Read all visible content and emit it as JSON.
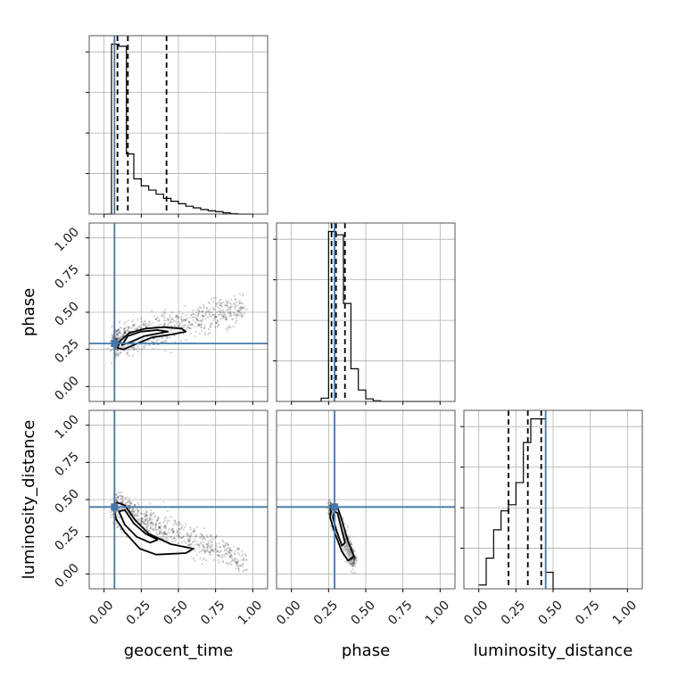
{
  "chart_data": {
    "type": "corner",
    "parameters": [
      "geocent_time",
      "phase",
      "luminosity_distance"
    ],
    "axis_range": [
      -0.1,
      1.1
    ],
    "ticks": [
      0.0,
      0.25,
      0.5,
      0.75,
      1.0
    ],
    "tick_labels": [
      "0.00",
      "0.25",
      "0.50",
      "0.75",
      "1.00"
    ],
    "grid": true,
    "truths": {
      "geocent_time": 0.07,
      "phase": 0.29,
      "luminosity_distance": 0.45
    },
    "colors": {
      "truth": "#4477aa",
      "hist": "#000000",
      "points": "#000000",
      "quantile": "#000000",
      "grid": "#b0b0b0"
    },
    "histograms": [
      {
        "parameter": "geocent_time",
        "bin_edges": [
          0.0,
          0.05,
          0.1,
          0.15,
          0.2,
          0.25,
          0.3,
          0.35,
          0.4,
          0.45,
          0.5,
          0.55,
          0.6,
          0.65,
          0.7,
          0.75,
          0.8,
          0.85,
          0.9,
          0.95,
          1.0
        ],
        "counts": [
          0,
          4.1,
          4.05,
          1.45,
          0.85,
          0.68,
          0.58,
          0.48,
          0.38,
          0.31,
          0.25,
          0.19,
          0.15,
          0.11,
          0.08,
          0.06,
          0.03,
          0.01,
          0,
          0
        ],
        "quantiles": [
          0.09,
          0.16,
          0.42
        ]
      },
      {
        "parameter": "phase",
        "bin_edges": [
          0.0,
          0.05,
          0.1,
          0.15,
          0.2,
          0.25,
          0.3,
          0.35,
          0.4,
          0.45,
          0.5,
          0.55,
          0.6,
          0.65,
          0.7,
          0.75,
          0.8,
          0.85,
          0.9,
          0.95,
          1.0
        ],
        "counts": [
          0,
          0,
          0,
          0,
          0.1,
          5.2,
          5.1,
          3.0,
          1.0,
          0.35,
          0.08,
          0.02,
          0,
          0,
          0,
          0,
          0,
          0,
          0,
          0
        ],
        "quantiles": [
          0.27,
          0.3,
          0.36
        ]
      },
      {
        "parameter": "luminosity_distance",
        "bin_edges": [
          0.0,
          0.05,
          0.1,
          0.15,
          0.2,
          0.25,
          0.3,
          0.35,
          0.4,
          0.45,
          0.5,
          0.55,
          0.6,
          0.65,
          0.7,
          0.75,
          0.8,
          0.85,
          0.9,
          0.95,
          1.0
        ],
        "counts": [
          0.08,
          0.65,
          1.25,
          1.65,
          1.78,
          2.25,
          3.1,
          3.6,
          3.6,
          0.35,
          0,
          0,
          0,
          0,
          0,
          0,
          0,
          0,
          0,
          0
        ],
        "quantiles": [
          0.2,
          0.33,
          0.42
        ]
      }
    ],
    "panels_2d": [
      {
        "x": "geocent_time",
        "y": "phase",
        "scatter_trend": {
          "x_range": [
            0.07,
            0.95
          ],
          "y_start": 0.3,
          "y_end": 0.53,
          "spread": 0.05
        },
        "contours": [
          [
            [
              0.09,
              0.26
            ],
            [
              0.13,
              0.25
            ],
            [
              0.2,
              0.28
            ],
            [
              0.32,
              0.33
            ],
            [
              0.45,
              0.35
            ],
            [
              0.55,
              0.37
            ],
            [
              0.52,
              0.39
            ],
            [
              0.4,
              0.4
            ],
            [
              0.28,
              0.39
            ],
            [
              0.17,
              0.36
            ],
            [
              0.11,
              0.31
            ]
          ],
          [
            [
              0.12,
              0.28
            ],
            [
              0.18,
              0.3
            ],
            [
              0.27,
              0.34
            ],
            [
              0.38,
              0.36
            ],
            [
              0.43,
              0.37
            ],
            [
              0.36,
              0.38
            ],
            [
              0.25,
              0.37
            ],
            [
              0.16,
              0.34
            ]
          ]
        ]
      },
      {
        "x": "geocent_time",
        "y": "luminosity_distance",
        "scatter_trend": {
          "x_range": [
            0.07,
            0.95
          ],
          "y_start": 0.44,
          "y_end": 0.08,
          "spread": 0.05
        },
        "contours": [
          [
            [
              0.07,
              0.43
            ],
            [
              0.09,
              0.48
            ],
            [
              0.14,
              0.46
            ],
            [
              0.21,
              0.36
            ],
            [
              0.3,
              0.27
            ],
            [
              0.45,
              0.2
            ],
            [
              0.6,
              0.17
            ],
            [
              0.55,
              0.14
            ],
            [
              0.35,
              0.13
            ],
            [
              0.24,
              0.17
            ],
            [
              0.14,
              0.28
            ],
            [
              0.08,
              0.37
            ]
          ],
          [
            [
              0.1,
              0.42
            ],
            [
              0.14,
              0.43
            ],
            [
              0.2,
              0.34
            ],
            [
              0.28,
              0.27
            ],
            [
              0.36,
              0.23
            ],
            [
              0.31,
              0.21
            ],
            [
              0.22,
              0.25
            ],
            [
              0.14,
              0.33
            ]
          ]
        ]
      },
      {
        "x": "phase",
        "y": "luminosity_distance",
        "scatter_trend": {
          "x_range": [
            0.26,
            0.42
          ],
          "y_start": 0.45,
          "y_end": 0.08,
          "spread": 0.03
        },
        "contours": [
          [
            [
              0.27,
              0.44
            ],
            [
              0.31,
              0.45
            ],
            [
              0.34,
              0.36
            ],
            [
              0.38,
              0.22
            ],
            [
              0.42,
              0.12
            ],
            [
              0.38,
              0.09
            ],
            [
              0.34,
              0.15
            ],
            [
              0.29,
              0.28
            ],
            [
              0.26,
              0.38
            ]
          ],
          [
            [
              0.29,
              0.42
            ],
            [
              0.31,
              0.41
            ],
            [
              0.33,
              0.33
            ],
            [
              0.36,
              0.21
            ],
            [
              0.34,
              0.19
            ],
            [
              0.3,
              0.3
            ],
            [
              0.28,
              0.38
            ]
          ]
        ]
      }
    ]
  }
}
